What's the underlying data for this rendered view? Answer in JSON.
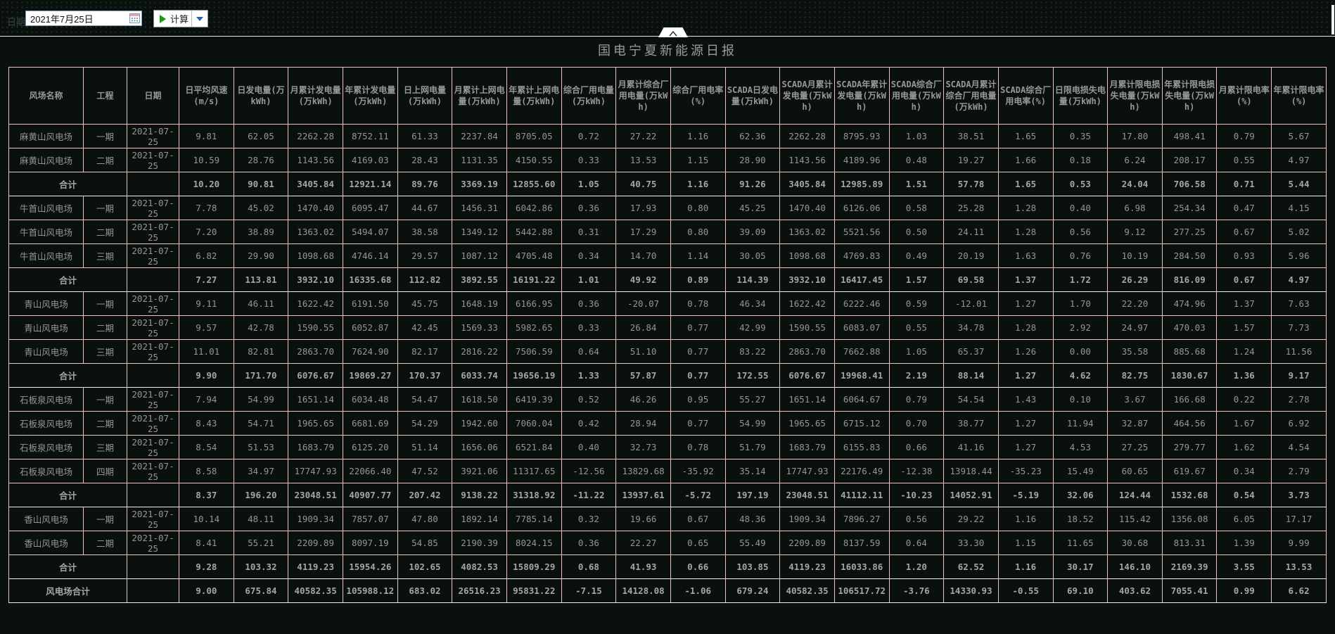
{
  "toolbar": {
    "date_label": "日期",
    "date_value": "2021年7月25日",
    "calc_label": "计算"
  },
  "header": {
    "title": "国电宁夏新能源日报"
  },
  "colors": {
    "table_border": "#eec5b8",
    "play_icon": "#169a16",
    "dropdown_icon": "#2a5db0",
    "background": "#0a100d"
  },
  "table": {
    "columns": [
      "风场名称",
      "工程",
      "日期",
      "日平均风速(m/s)",
      "日发电量(万kWh)",
      "月累计发电量(万kWh)",
      "年累计发电量(万kWh)",
      "日上网电量(万kWh)",
      "月累计上网电量(万kWh)",
      "年累计上网电量(万kWh)",
      "综合厂用电量(万kWh)",
      "月累计综合厂用电量(万kWh)",
      "综合厂用电率(%)",
      "SCADA日发电量(万kWh)",
      "SCADA月累计发电量(万kWh)",
      "SCADA年累计发电量(万kWh)",
      "SCADA综合厂用电量(万kWh)",
      "SCADA月累计综合厂用电量(万kWh)",
      "SCADA综合厂用电率(%)",
      "日限电损失电量(万kWh)",
      "月累计限电损失电量(万kWh)",
      "年累计限电损失电量(万kWh)",
      "月累计限电率(%)",
      "年累计限电率(%)"
    ],
    "rows": [
      {
        "type": "data",
        "name": "麻黄山风电场",
        "phase": "一期",
        "date": "2021-07-25",
        "values": [
          "9.81",
          "62.05",
          "2262.28",
          "8752.11",
          "61.33",
          "2237.84",
          "8705.05",
          "0.72",
          "27.22",
          "1.16",
          "62.36",
          "2262.28",
          "8795.93",
          "1.03",
          "38.51",
          "1.65",
          "0.35",
          "17.80",
          "498.41",
          "0.79",
          "5.67"
        ]
      },
      {
        "type": "data",
        "name": "麻黄山风电场",
        "phase": "二期",
        "date": "2021-07-25",
        "values": [
          "10.59",
          "28.76",
          "1143.56",
          "4169.03",
          "28.43",
          "1131.35",
          "4150.55",
          "0.33",
          "13.53",
          "1.15",
          "28.90",
          "1143.56",
          "4189.96",
          "0.48",
          "19.27",
          "1.66",
          "0.18",
          "6.24",
          "208.17",
          "0.55",
          "4.97"
        ]
      },
      {
        "type": "subtotal",
        "name": "合计",
        "phase": "",
        "date": "",
        "values": [
          "10.20",
          "90.81",
          "3405.84",
          "12921.14",
          "89.76",
          "3369.19",
          "12855.60",
          "1.05",
          "40.75",
          "1.16",
          "91.26",
          "3405.84",
          "12985.89",
          "1.51",
          "57.78",
          "1.65",
          "0.53",
          "24.04",
          "706.58",
          "0.71",
          "5.44"
        ]
      },
      {
        "type": "data",
        "name": "牛首山风电场",
        "phase": "一期",
        "date": "2021-07-25",
        "values": [
          "7.78",
          "45.02",
          "1470.40",
          "6095.47",
          "44.67",
          "1456.31",
          "6042.86",
          "0.36",
          "17.93",
          "0.80",
          "45.25",
          "1470.40",
          "6126.06",
          "0.58",
          "25.28",
          "1.28",
          "0.40",
          "6.98",
          "254.34",
          "0.47",
          "4.15"
        ]
      },
      {
        "type": "data",
        "name": "牛首山风电场",
        "phase": "二期",
        "date": "2021-07-25",
        "values": [
          "7.20",
          "38.89",
          "1363.02",
          "5494.07",
          "38.58",
          "1349.12",
          "5442.88",
          "0.31",
          "17.29",
          "0.80",
          "39.09",
          "1363.02",
          "5521.56",
          "0.50",
          "24.11",
          "1.28",
          "0.56",
          "9.12",
          "277.25",
          "0.67",
          "5.02"
        ]
      },
      {
        "type": "data",
        "name": "牛首山风电场",
        "phase": "三期",
        "date": "2021-07-25",
        "values": [
          "6.82",
          "29.90",
          "1098.68",
          "4746.14",
          "29.57",
          "1087.12",
          "4705.48",
          "0.34",
          "14.70",
          "1.14",
          "30.05",
          "1098.68",
          "4769.83",
          "0.49",
          "20.19",
          "1.63",
          "0.76",
          "10.19",
          "284.50",
          "0.93",
          "5.96"
        ]
      },
      {
        "type": "subtotal",
        "name": "合计",
        "phase": "",
        "date": "",
        "values": [
          "7.27",
          "113.81",
          "3932.10",
          "16335.68",
          "112.82",
          "3892.55",
          "16191.22",
          "1.01",
          "49.92",
          "0.89",
          "114.39",
          "3932.10",
          "16417.45",
          "1.57",
          "69.58",
          "1.37",
          "1.72",
          "26.29",
          "816.09",
          "0.67",
          "4.97"
        ]
      },
      {
        "type": "data",
        "name": "青山风电场",
        "phase": "一期",
        "date": "2021-07-25",
        "values": [
          "9.11",
          "46.11",
          "1622.42",
          "6191.50",
          "45.75",
          "1648.19",
          "6166.95",
          "0.36",
          "-20.07",
          "0.78",
          "46.34",
          "1622.42",
          "6222.46",
          "0.59",
          "-12.01",
          "1.27",
          "1.70",
          "22.20",
          "474.96",
          "1.37",
          "7.63"
        ]
      },
      {
        "type": "data",
        "name": "青山风电场",
        "phase": "二期",
        "date": "2021-07-25",
        "values": [
          "9.57",
          "42.78",
          "1590.55",
          "6052.87",
          "42.45",
          "1569.33",
          "5982.65",
          "0.33",
          "26.84",
          "0.77",
          "42.99",
          "1590.55",
          "6083.07",
          "0.55",
          "34.78",
          "1.28",
          "2.92",
          "24.97",
          "470.03",
          "1.57",
          "7.73"
        ]
      },
      {
        "type": "data",
        "name": "青山风电场",
        "phase": "三期",
        "date": "2021-07-25",
        "values": [
          "11.01",
          "82.81",
          "2863.70",
          "7624.90",
          "82.17",
          "2816.22",
          "7506.59",
          "0.64",
          "51.10",
          "0.77",
          "83.22",
          "2863.70",
          "7662.88",
          "1.05",
          "65.37",
          "1.26",
          "0.00",
          "35.58",
          "885.68",
          "1.24",
          "11.56"
        ]
      },
      {
        "type": "subtotal",
        "name": "合计",
        "phase": "",
        "date": "",
        "values": [
          "9.90",
          "171.70",
          "6076.67",
          "19869.27",
          "170.37",
          "6033.74",
          "19656.19",
          "1.33",
          "57.87",
          "0.77",
          "172.55",
          "6076.67",
          "19968.41",
          "2.19",
          "88.14",
          "1.27",
          "4.62",
          "82.75",
          "1830.67",
          "1.36",
          "9.17"
        ]
      },
      {
        "type": "data",
        "name": "石板泉风电场",
        "phase": "一期",
        "date": "2021-07-25",
        "values": [
          "7.94",
          "54.99",
          "1651.14",
          "6034.48",
          "54.47",
          "1618.50",
          "6419.39",
          "0.52",
          "46.26",
          "0.95",
          "55.27",
          "1651.14",
          "6064.67",
          "0.79",
          "54.54",
          "1.43",
          "0.10",
          "3.67",
          "166.68",
          "0.22",
          "2.78"
        ]
      },
      {
        "type": "data",
        "name": "石板泉风电场",
        "phase": "二期",
        "date": "2021-07-25",
        "values": [
          "8.43",
          "54.71",
          "1965.65",
          "6681.69",
          "54.29",
          "1942.60",
          "7060.04",
          "0.42",
          "28.94",
          "0.77",
          "54.99",
          "1965.65",
          "6715.12",
          "0.70",
          "38.77",
          "1.27",
          "11.94",
          "32.87",
          "464.56",
          "1.67",
          "6.92"
        ]
      },
      {
        "type": "data",
        "name": "石板泉风电场",
        "phase": "三期",
        "date": "2021-07-25",
        "values": [
          "8.54",
          "51.53",
          "1683.79",
          "6125.20",
          "51.14",
          "1656.06",
          "6521.84",
          "0.40",
          "32.73",
          "0.78",
          "51.79",
          "1683.79",
          "6155.83",
          "0.66",
          "41.16",
          "1.27",
          "4.53",
          "27.25",
          "279.77",
          "1.62",
          "4.54"
        ]
      },
      {
        "type": "data",
        "name": "石板泉风电场",
        "phase": "四期",
        "date": "2021-07-25",
        "values": [
          "8.58",
          "34.97",
          "17747.93",
          "22066.40",
          "47.52",
          "3921.06",
          "11317.65",
          "-12.56",
          "13829.68",
          "-35.92",
          "35.14",
          "17747.93",
          "22176.49",
          "-12.38",
          "13918.44",
          "-35.23",
          "15.49",
          "60.65",
          "619.67",
          "0.34",
          "2.79"
        ]
      },
      {
        "type": "subtotal",
        "name": "合计",
        "phase": "",
        "date": "",
        "values": [
          "8.37",
          "196.20",
          "23048.51",
          "40907.77",
          "207.42",
          "9138.22",
          "31318.92",
          "-11.22",
          "13937.61",
          "-5.72",
          "197.19",
          "23048.51",
          "41112.11",
          "-10.23",
          "14052.91",
          "-5.19",
          "32.06",
          "124.44",
          "1532.68",
          "0.54",
          "3.73"
        ]
      },
      {
        "type": "data",
        "name": "香山风电场",
        "phase": "一期",
        "date": "2021-07-25",
        "values": [
          "10.14",
          "48.11",
          "1909.34",
          "7857.07",
          "47.80",
          "1892.14",
          "7785.14",
          "0.32",
          "19.66",
          "0.67",
          "48.36",
          "1909.34",
          "7896.27",
          "0.56",
          "29.22",
          "1.16",
          "18.52",
          "115.42",
          "1356.08",
          "6.05",
          "17.17"
        ]
      },
      {
        "type": "data",
        "name": "香山风电场",
        "phase": "二期",
        "date": "2021-07-25",
        "values": [
          "8.41",
          "55.21",
          "2209.89",
          "8097.19",
          "54.85",
          "2190.39",
          "8024.15",
          "0.36",
          "22.27",
          "0.65",
          "55.49",
          "2209.89",
          "8137.59",
          "0.64",
          "33.30",
          "1.15",
          "11.65",
          "30.68",
          "813.31",
          "1.39",
          "9.99"
        ]
      },
      {
        "type": "subtotal",
        "name": "合计",
        "phase": "",
        "date": "",
        "values": [
          "9.28",
          "103.32",
          "4119.23",
          "15954.26",
          "102.65",
          "4082.53",
          "15809.29",
          "0.68",
          "41.93",
          "0.66",
          "103.85",
          "4119.23",
          "16033.86",
          "1.20",
          "62.52",
          "1.16",
          "30.17",
          "146.10",
          "2169.39",
          "3.55",
          "13.53"
        ]
      },
      {
        "type": "total",
        "name": "风电场合计",
        "phase": "",
        "date": "",
        "values": [
          "9.00",
          "675.84",
          "40582.35",
          "105988.12",
          "683.02",
          "26516.23",
          "95831.22",
          "-7.15",
          "14128.08",
          "-1.06",
          "679.24",
          "40582.35",
          "106517.72",
          "-3.76",
          "14330.93",
          "-0.55",
          "69.10",
          "403.62",
          "7055.41",
          "0.99",
          "6.62"
        ]
      }
    ]
  }
}
